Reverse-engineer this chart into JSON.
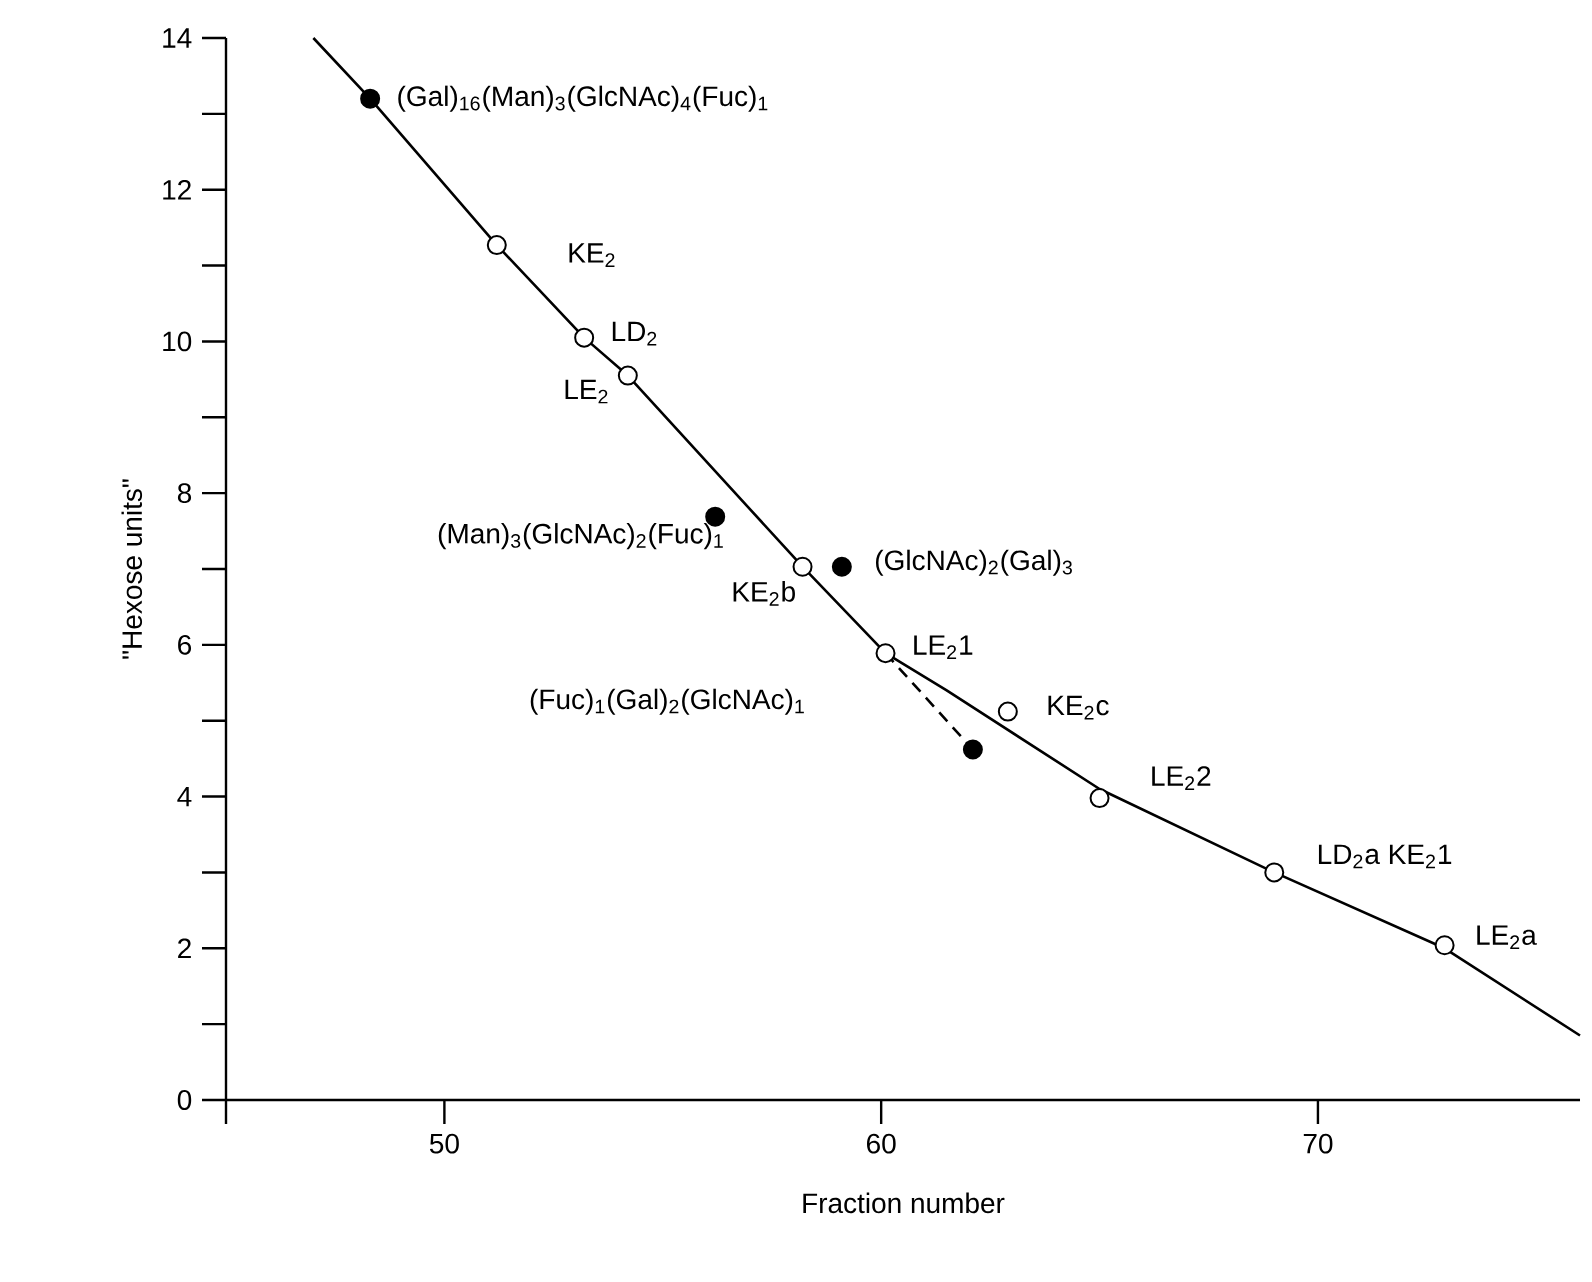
{
  "chart_data": {
    "type": "scatter",
    "xlabel": "Fraction number",
    "ylabel": "\"Hexose units\"",
    "xlim": [
      45,
      76
    ],
    "ylim": [
      0,
      14
    ],
    "xticks": [
      {
        "value": 45,
        "label": null
      },
      50,
      60,
      70
    ],
    "yticks": [
      0,
      {
        "value": 1,
        "label": null
      },
      2,
      {
        "value": 3,
        "label": null
      },
      4,
      {
        "value": 5,
        "label": null
      },
      6,
      {
        "value": 7,
        "label": null
      },
      8,
      {
        "value": 9,
        "label": null
      },
      10,
      {
        "value": 11,
        "label": null
      },
      12,
      {
        "value": 13,
        "label": null
      },
      14
    ],
    "grid": false,
    "marker": "circle",
    "series": [
      {
        "type": "line",
        "color": "#000000",
        "line_style": "solid",
        "marker": "none",
        "x": [
          47.0,
          48.3,
          51.2,
          53.2,
          54.2,
          58.2,
          60.1,
          61.5,
          65.0,
          69.0,
          72.9,
          76.0
        ],
        "values": [
          14.0,
          13.2,
          11.27,
          10.05,
          9.55,
          7.03,
          5.89,
          5.4,
          4.1,
          3.0,
          2.0,
          0.85
        ]
      },
      {
        "type": "line",
        "color": "#000000",
        "line_style": "dashed",
        "marker": "none",
        "x": [
          60.1,
          62.1
        ],
        "values": [
          5.89,
          4.62
        ]
      },
      {
        "color": "#ffffff",
        "x": [
          51.2,
          53.2,
          54.2,
          58.2,
          60.1,
          62.9,
          65.0,
          69.0,
          72.9
        ],
        "values": [
          11.27,
          10.05,
          9.55,
          7.03,
          5.89,
          5.12,
          3.98,
          3.0,
          2.04
        ]
      },
      {
        "color": "#000000",
        "x": [
          48.3,
          56.2,
          59.1,
          62.1
        ],
        "values": [
          13.2,
          7.69,
          7.03,
          4.62
        ]
      }
    ],
    "annotations": [
      {
        "text": "(Gal)$_{16}$(Man)$_{3}$(GlcNAc)$_{4}$(Fuc)$_{1}$",
        "x": 48.3,
        "y": 13.2
      },
      {
        "text": "KE$_{2}$",
        "x": 51.2,
        "y": 11.27
      },
      {
        "text": "LD$_{2}$",
        "x": 53.2,
        "y": 10.05
      },
      {
        "text": "LE$_{2}$",
        "x": 54.2,
        "y": 9.55
      },
      {
        "text": "(Man)$_{3}$(GlcNAc)$_{2}$(Fuc)$_{1}$",
        "x": 56.2,
        "y": 7.69
      },
      {
        "text": "KE$_{2}$b",
        "x": 58.2,
        "y": 7.03
      },
      {
        "text": "(GlcNAc)$_{2}$(Gal)$_{3}$",
        "x": 59.1,
        "y": 7.03
      },
      {
        "text": "LE$_{2}$1",
        "x": 60.1,
        "y": 5.89
      },
      {
        "text": "KE$_{2}$c",
        "x": 62.9,
        "y": 5.12
      },
      "(Fuc)$_{1}$(Gal)$_{2}$(GlcNAc)$_{1}$",
      {
        "text": "LE$_{2}$2",
        "x": 65.0,
        "y": 3.98
      },
      {
        "text": "LD$_{2}$a KE$_{2}$1",
        "x": 69.0,
        "y": 3.0
      },
      {
        "text": "LE$_{2}$a",
        "x": 72.9,
        "y": 2.04
      }
    ]
  }
}
